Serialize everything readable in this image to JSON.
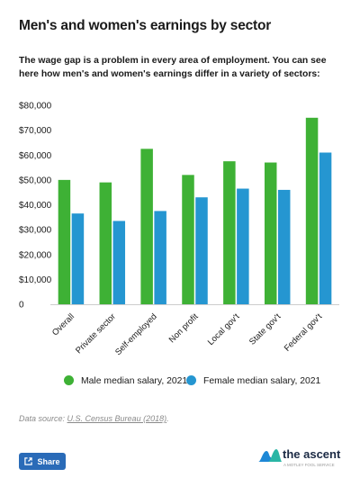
{
  "title": "Men's and women's earnings by sector",
  "subtitle": "The wage gap is a problem in every area of employment. You can see here how men's and women's earnings differ in a variety of sectors:",
  "chart_data": {
    "type": "bar",
    "categories": [
      "Overall",
      "Private sector",
      "Self-employed",
      "Non profit",
      "Local gov't",
      "State gov't",
      "Federal gov't"
    ],
    "series": [
      {
        "name": "Male median salary, 2021",
        "values": [
          50000,
          49000,
          62500,
          52000,
          57500,
          57000,
          75000
        ],
        "color": "#3eb135"
      },
      {
        "name": "Female median salary, 2021",
        "values": [
          36500,
          33500,
          37500,
          43000,
          46500,
          46000,
          61000
        ],
        "color": "#2596d1"
      }
    ],
    "yticks": [
      "0",
      "$10,000",
      "$20,000",
      "$30,000",
      "$40,000",
      "$50,000",
      "$60,000",
      "$70,000",
      "$80,000"
    ],
    "ylim": [
      0,
      80000
    ],
    "grid": false,
    "legend_position": "bottom"
  },
  "source": {
    "prefix": "Data source: ",
    "link_text": "U.S. Census Bureau (2018)",
    "suffix": "."
  },
  "share": {
    "label": "Share",
    "icon": "share-icon"
  },
  "brand": {
    "name": "the ascent",
    "tagline": "A MOTLEY FOOL SERVICE",
    "logo_colors": [
      "#1e88d6",
      "#2ab6a5"
    ]
  }
}
